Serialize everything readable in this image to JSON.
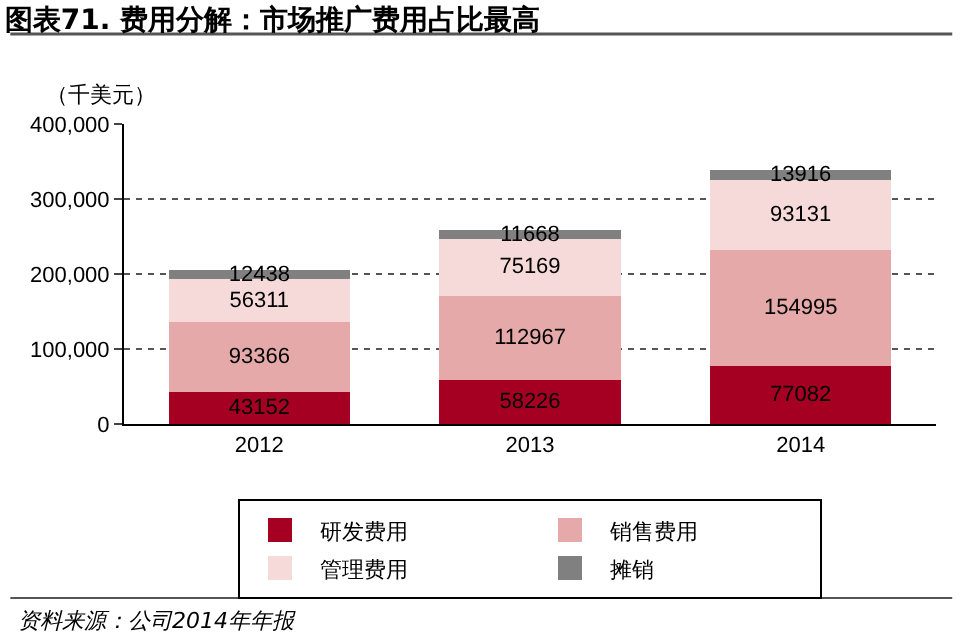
{
  "chart_data": {
    "type": "bar",
    "title": "图表71. 费用分解：市场推广费用占比最高",
    "ylabel": "（千美元）",
    "categories": [
      "2012",
      "2013",
      "2014"
    ],
    "stacked": true,
    "series": [
      {
        "name": "研发费用",
        "color": "#a50021",
        "values": [
          43152,
          58226,
          77082
        ]
      },
      {
        "name": "销售费用",
        "color": "#e6a9a9",
        "values": [
          93366,
          112967,
          154995
        ]
      },
      {
        "name": "管理费用",
        "color": "#f6d9d9",
        "values": [
          56311,
          75169,
          93131
        ]
      },
      {
        "name": "摊销",
        "color": "#808080",
        "values": [
          12438,
          11668,
          13916
        ]
      }
    ],
    "ylim": [
      0,
      400000
    ],
    "yticks": [
      {
        "value": 0,
        "label": "0"
      },
      {
        "value": 100000,
        "label": "100,000"
      },
      {
        "value": 200000,
        "label": "200,000"
      },
      {
        "value": 300000,
        "label": "300,000"
      },
      {
        "value": 400000,
        "label": "400,000"
      }
    ],
    "grid": "y",
    "legend": "bottom",
    "data_labels": true,
    "annotations": [
      "资料来源：公司2014年年报"
    ]
  }
}
